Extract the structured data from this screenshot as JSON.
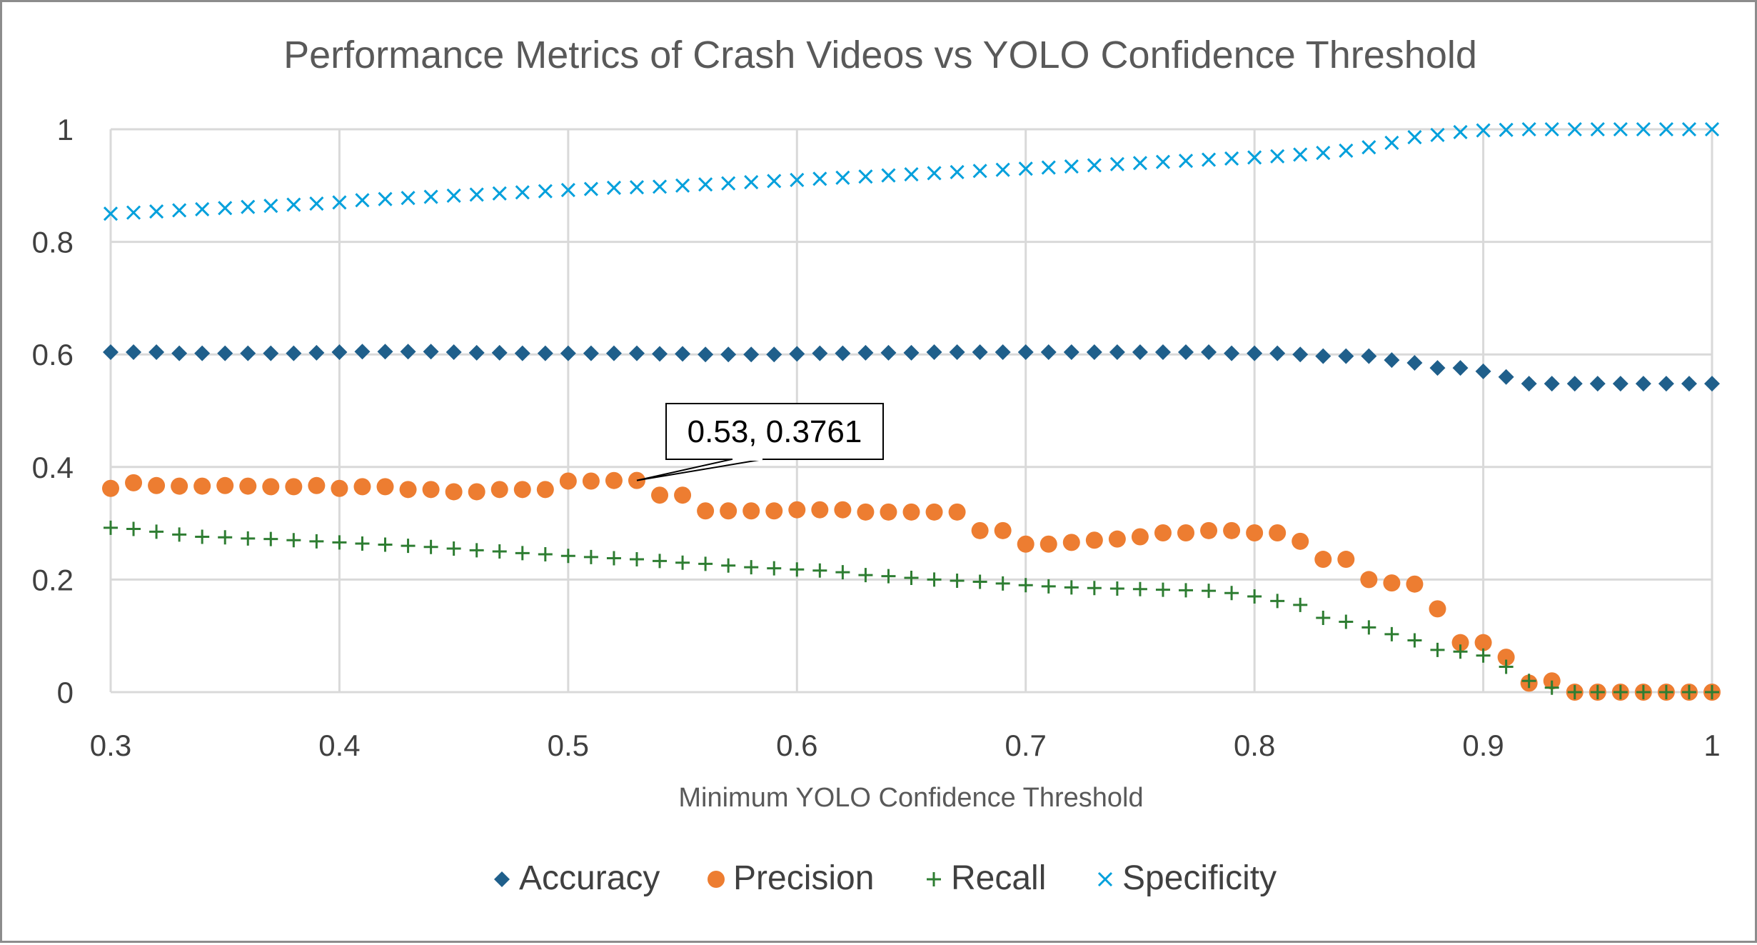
{
  "chart_data": {
    "type": "scatter",
    "title": "Performance Metrics of Crash Videos vs YOLO Confidence Threshold",
    "xlabel": "Minimum YOLO Confidence Threshold",
    "ylabel": "",
    "xlim": [
      0.3,
      1.0
    ],
    "ylim": [
      0,
      1.0
    ],
    "x_ticks": [
      "0.3",
      "0.4",
      "0.5",
      "0.6",
      "0.7",
      "0.8",
      "0.9",
      "1"
    ],
    "y_ticks": [
      "0",
      "0.2",
      "0.4",
      "0.6",
      "0.8",
      "1"
    ],
    "grid": true,
    "legend_position": "bottom",
    "x": [
      0.3,
      0.31,
      0.32,
      0.33,
      0.34,
      0.35,
      0.36,
      0.37,
      0.38,
      0.39,
      0.4,
      0.41,
      0.42,
      0.43,
      0.44,
      0.45,
      0.46,
      0.47,
      0.48,
      0.49,
      0.5,
      0.51,
      0.52,
      0.53,
      0.54,
      0.55,
      0.56,
      0.57,
      0.58,
      0.59,
      0.6,
      0.61,
      0.62,
      0.63,
      0.64,
      0.65,
      0.66,
      0.67,
      0.68,
      0.69,
      0.7,
      0.71,
      0.72,
      0.73,
      0.74,
      0.75,
      0.76,
      0.77,
      0.78,
      0.79,
      0.8,
      0.81,
      0.82,
      0.83,
      0.84,
      0.85,
      0.86,
      0.87,
      0.88,
      0.89,
      0.9,
      0.91,
      0.92,
      0.93,
      0.94,
      0.95,
      0.96,
      0.97,
      0.98,
      0.99,
      1.0
    ],
    "series": [
      {
        "name": "Accuracy",
        "marker": "diamond",
        "color": "#1f5f8b",
        "values": [
          0.604,
          0.604,
          0.604,
          0.602,
          0.602,
          0.602,
          0.602,
          0.602,
          0.602,
          0.603,
          0.604,
          0.605,
          0.605,
          0.605,
          0.605,
          0.604,
          0.603,
          0.603,
          0.602,
          0.602,
          0.602,
          0.602,
          0.602,
          0.602,
          0.601,
          0.601,
          0.6,
          0.6,
          0.6,
          0.6,
          0.601,
          0.602,
          0.602,
          0.603,
          0.603,
          0.603,
          0.604,
          0.604,
          0.604,
          0.604,
          0.604,
          0.604,
          0.604,
          0.604,
          0.604,
          0.604,
          0.604,
          0.604,
          0.604,
          0.602,
          0.602,
          0.602,
          0.6,
          0.597,
          0.597,
          0.597,
          0.59,
          0.585,
          0.576,
          0.576,
          0.57,
          0.56,
          0.548,
          0.548,
          0.548,
          0.548,
          0.548,
          0.548,
          0.548,
          0.548,
          0.548
        ]
      },
      {
        "name": "Precision",
        "marker": "circle",
        "color": "#ed7d31",
        "values": [
          0.362,
          0.372,
          0.367,
          0.366,
          0.366,
          0.367,
          0.366,
          0.365,
          0.365,
          0.367,
          0.362,
          0.365,
          0.365,
          0.36,
          0.36,
          0.356,
          0.356,
          0.36,
          0.36,
          0.36,
          0.375,
          0.375,
          0.376,
          0.3761,
          0.35,
          0.35,
          0.322,
          0.322,
          0.322,
          0.322,
          0.324,
          0.324,
          0.324,
          0.32,
          0.32,
          0.32,
          0.32,
          0.32,
          0.287,
          0.287,
          0.263,
          0.263,
          0.266,
          0.27,
          0.272,
          0.276,
          0.283,
          0.283,
          0.287,
          0.287,
          0.283,
          0.283,
          0.268,
          0.236,
          0.236,
          0.2,
          0.194,
          0.192,
          0.148,
          0.088,
          0.088,
          0.062,
          0.016,
          0.02,
          0.0,
          0.0,
          0.0,
          0.0,
          0.0,
          0.0,
          0.0
        ]
      },
      {
        "name": "Recall",
        "marker": "plus",
        "color": "#2e7d32",
        "values": [
          0.292,
          0.29,
          0.285,
          0.28,
          0.276,
          0.275,
          0.273,
          0.272,
          0.27,
          0.268,
          0.266,
          0.264,
          0.262,
          0.26,
          0.258,
          0.255,
          0.252,
          0.25,
          0.247,
          0.245,
          0.242,
          0.24,
          0.238,
          0.236,
          0.233,
          0.23,
          0.228,
          0.225,
          0.222,
          0.22,
          0.218,
          0.216,
          0.213,
          0.208,
          0.206,
          0.203,
          0.2,
          0.198,
          0.196,
          0.193,
          0.19,
          0.188,
          0.186,
          0.185,
          0.184,
          0.183,
          0.182,
          0.181,
          0.18,
          0.176,
          0.17,
          0.162,
          0.155,
          0.132,
          0.125,
          0.115,
          0.103,
          0.092,
          0.075,
          0.072,
          0.065,
          0.045,
          0.02,
          0.008,
          0.0,
          0.0,
          0.0,
          0.0,
          0.0,
          0.0,
          0.0
        ]
      },
      {
        "name": "Specificity",
        "marker": "x",
        "color": "#00a0dc",
        "values": [
          0.85,
          0.852,
          0.854,
          0.856,
          0.858,
          0.86,
          0.862,
          0.864,
          0.866,
          0.868,
          0.87,
          0.874,
          0.876,
          0.878,
          0.88,
          0.882,
          0.884,
          0.886,
          0.888,
          0.89,
          0.892,
          0.894,
          0.896,
          0.897,
          0.898,
          0.9,
          0.902,
          0.904,
          0.906,
          0.908,
          0.91,
          0.912,
          0.914,
          0.916,
          0.918,
          0.92,
          0.922,
          0.924,
          0.926,
          0.928,
          0.93,
          0.932,
          0.934,
          0.936,
          0.938,
          0.94,
          0.942,
          0.944,
          0.946,
          0.948,
          0.95,
          0.952,
          0.955,
          0.958,
          0.962,
          0.968,
          0.976,
          0.986,
          0.99,
          0.995,
          0.998,
          0.999,
          1.0,
          1.0,
          1.0,
          1.0,
          1.0,
          1.0,
          1.0,
          1.0,
          1.0
        ]
      }
    ],
    "annotations": [
      {
        "text": "0.53, 0.3761",
        "series": "Precision",
        "x": 0.53,
        "y": 0.3761
      }
    ]
  }
}
